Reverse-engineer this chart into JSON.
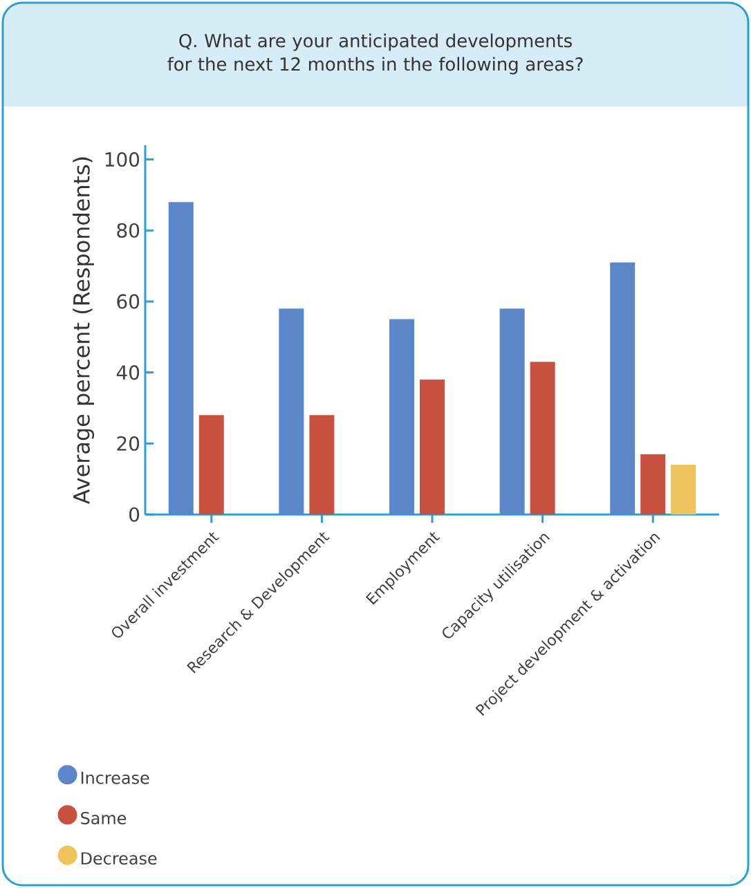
{
  "chart_data": {
    "type": "bar",
    "title": "Q. What are your anticipated developments for the next 12 months in the following areas?",
    "ylabel": "Average percent (Respondents)",
    "categories": [
      "Overall investment",
      "Research & Development",
      "Employment",
      "Capacity utilisation",
      "Project development & activation"
    ],
    "series": [
      {
        "name": "Increase",
        "color": "#5b86c9",
        "values": [
          88,
          58,
          55,
          58,
          71
        ]
      },
      {
        "name": "Same",
        "color": "#c9503f",
        "values": [
          28,
          28,
          38,
          43,
          17
        ]
      },
      {
        "name": "Decrease",
        "color": "#eec35a",
        "values": [
          null,
          null,
          null,
          null,
          14
        ]
      }
    ],
    "ylim": [
      0,
      104
    ],
    "yticks": [
      0,
      20,
      40,
      60,
      80,
      100
    ],
    "grid": false,
    "legend": "bottom left"
  }
}
